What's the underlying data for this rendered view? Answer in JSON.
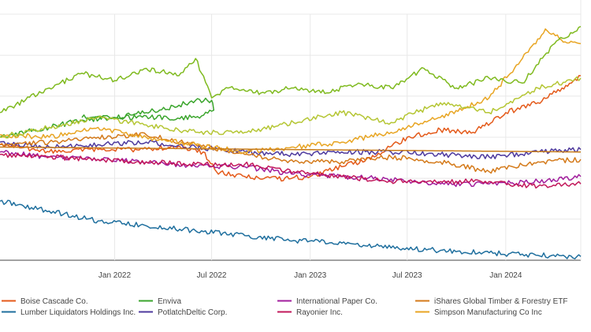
{
  "chart_data": {
    "type": "line",
    "title": "",
    "xlabel": "",
    "ylabel": "",
    "x_range": [
      "2021-06-01",
      "2024-05-20"
    ],
    "y_range": [
      0,
      100
    ],
    "y_note": "relative index; y-axis tick labels not visible",
    "grid": true,
    "x_ticks": [
      "2022-01-01",
      "2022-07-01",
      "2023-01-01",
      "2023-07-01",
      "2024-01-01"
    ],
    "x_tick_labels": [
      "Jan 2022",
      "Jul 2022",
      "Jan 2023",
      "Jul 2023",
      "Jan 2024"
    ],
    "y_grid": [
      0,
      16.7,
      33.3,
      50,
      66.7,
      83.3,
      100
    ],
    "legend_position": "bottom",
    "series": [
      {
        "name": "Boise Cascade Co.",
        "color": "#e45a1a",
        "x": [
          "2021-06-01",
          "2021-09-01",
          "2021-12-01",
          "2022-02-01",
          "2022-04-15",
          "2022-06-15",
          "2022-07-10",
          "2022-09-01",
          "2022-11-01",
          "2023-01-01",
          "2023-03-01",
          "2023-05-01",
          "2023-07-01",
          "2023-09-01",
          "2023-11-01",
          "2024-01-01",
          "2024-03-01",
          "2024-04-15",
          "2024-05-20"
        ],
        "y": [
          47,
          44,
          45,
          45,
          46,
          44,
          36,
          34,
          33,
          34,
          38,
          42,
          50,
          53,
          52,
          60,
          64,
          70,
          75
        ]
      },
      {
        "name": "Lumber Liquidators Holdings Inc.",
        "color": "#1f6f9e",
        "x": [
          "2021-06-01",
          "2021-09-01",
          "2021-12-01",
          "2022-03-01",
          "2022-06-01",
          "2022-09-01",
          "2022-12-01",
          "2023-03-01",
          "2023-06-01",
          "2023-09-01",
          "2023-12-01",
          "2024-03-01",
          "2024-05-20"
        ],
        "y": [
          24,
          20,
          16,
          14,
          12,
          10,
          8,
          7,
          5,
          4,
          3,
          2,
          1.5
        ]
      },
      {
        "name": "Enviva",
        "color": "#3aa52c",
        "x": [
          "2021-06-01",
          "2021-09-01",
          "2021-11-01",
          "2022-01-01",
          "2022-03-01",
          "2022-05-01",
          "2022-06-01",
          "2022-07-01",
          "2022-07-05",
          "2022-06-01",
          "2022-01-01",
          "2021-11-01"
        ],
        "y": [
          50,
          54,
          57,
          58,
          60,
          63,
          65,
          65,
          61,
          58,
          58,
          58
        ]
      },
      {
        "name": "PotlatchDeltic Corp.",
        "color": "#4e3a9e",
        "x": [
          "2021-06-01",
          "2021-09-01",
          "2021-12-01",
          "2022-03-01",
          "2022-06-01",
          "2022-09-01",
          "2022-12-01",
          "2023-03-01",
          "2023-06-01",
          "2023-09-01",
          "2023-12-01",
          "2024-03-01",
          "2024-05-20"
        ],
        "y": [
          48,
          46,
          47,
          48,
          46,
          44,
          43,
          44,
          44,
          43,
          42,
          44,
          45
        ]
      },
      {
        "name": "International Paper Co.",
        "color": "#a21e9d",
        "x": [
          "2021-06-01",
          "2021-09-01",
          "2021-12-01",
          "2022-03-01",
          "2022-06-01",
          "2022-09-01",
          "2022-12-01",
          "2023-03-01",
          "2023-06-01",
          "2023-09-01",
          "2023-12-01",
          "2024-03-01",
          "2024-05-20"
        ],
        "y": [
          44,
          42,
          41,
          40,
          38,
          38,
          35,
          34,
          33,
          31,
          31,
          32,
          34
        ]
      },
      {
        "name": "Rayonier Inc.",
        "color": "#c2185b",
        "x": [
          "2021-06-01",
          "2021-09-01",
          "2021-12-01",
          "2022-03-01",
          "2022-06-01",
          "2022-09-01",
          "2022-12-01",
          "2023-03-01",
          "2023-06-01",
          "2023-09-01",
          "2023-12-01",
          "2024-03-01",
          "2024-05-20"
        ],
        "y": [
          43,
          42,
          41,
          40,
          39,
          39,
          36,
          34,
          32,
          32,
          32,
          30,
          31
        ]
      },
      {
        "name": "iShares Global Timber & Forestry ETF",
        "color": "#d47a1a",
        "x": [
          "2021-06-01",
          "2021-09-01",
          "2021-12-01",
          "2022-03-01",
          "2022-06-01",
          "2022-09-01",
          "2022-12-01",
          "2023-03-01",
          "2023-06-01",
          "2023-09-01",
          "2023-12-01",
          "2024-03-01",
          "2024-05-20"
        ],
        "y": [
          47,
          48,
          50,
          51,
          47,
          43,
          40,
          40,
          42,
          40,
          36,
          40,
          41
        ]
      },
      {
        "name": "Simpson Manufacturing Co Inc",
        "color": "#e8a523",
        "x": [
          "2021-06-01",
          "2021-09-01",
          "2021-12-01",
          "2022-03-01",
          "2022-06-01",
          "2022-09-01",
          "2022-12-01",
          "2023-03-01",
          "2023-06-01",
          "2023-09-01",
          "2023-12-01",
          "2024-02-01",
          "2024-03-15",
          "2024-04-10",
          "2024-05-20"
        ],
        "y": [
          51,
          50,
          54,
          50,
          47,
          44,
          46,
          48,
          52,
          58,
          66,
          82,
          94,
          90,
          88
        ]
      },
      {
        "name": "",
        "color": "#7fba1f",
        "x": [
          "2021-06-01",
          "2021-09-01",
          "2021-11-01",
          "2022-01-01",
          "2022-03-01",
          "2022-05-01",
          "2022-06-01",
          "2022-07-01",
          "2022-08-01",
          "2022-10-01",
          "2022-12-01",
          "2023-02-01",
          "2023-04-01",
          "2023-06-01",
          "2023-08-01",
          "2023-10-01",
          "2023-12-01",
          "2024-02-01",
          "2024-04-01",
          "2024-05-20"
        ],
        "y": [
          60,
          70,
          76,
          73,
          78,
          75,
          82,
          66,
          70,
          68,
          70,
          68,
          72,
          70,
          78,
          70,
          74,
          72,
          88,
          95
        ]
      },
      {
        "name": "",
        "color": "#b5c634",
        "x": [
          "2021-06-01",
          "2021-09-01",
          "2021-12-01",
          "2022-03-01",
          "2022-06-01",
          "2022-09-01",
          "2022-12-01",
          "2023-03-01",
          "2023-06-01",
          "2023-09-01",
          "2023-12-01",
          "2024-03-01",
          "2024-05-20"
        ],
        "y": [
          50,
          54,
          58,
          55,
          52,
          52,
          56,
          60,
          56,
          64,
          60,
          70,
          74
        ]
      },
      {
        "name": "",
        "color": "#c87d1c",
        "x": [
          "2021-06-01",
          "2024-05-20"
        ],
        "y": [
          46,
          44
        ]
      }
    ],
    "legend_rows": [
      [
        "Boise Cascade Co.",
        "Enviva",
        "International Paper Co.",
        "iShares Global Timber & Forestry ETF"
      ],
      [
        "Lumber Liquidators Holdings Inc.",
        "PotlatchDeltic Corp.",
        "Rayonier Inc.",
        "Simpson Manufacturing Co Inc"
      ]
    ]
  }
}
